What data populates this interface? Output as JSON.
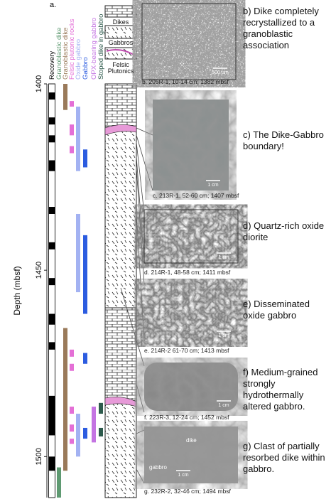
{
  "panel_a": {
    "label": "a.",
    "y_axis": {
      "title": "Depth (mbsf)",
      "lim": [
        1400,
        1511
      ],
      "ticks": [
        1400,
        1450,
        1500
      ]
    },
    "columns": [
      {
        "name": "Recovery",
        "color": "#000000",
        "intervals": [
          [
            1402.3,
            1404.2
          ],
          [
            1409,
            1410.9
          ],
          [
            1413.8,
            1415.7
          ],
          [
            1420.5,
            1423.4
          ],
          [
            1433,
            1434.9
          ],
          [
            1442.5,
            1444.4
          ],
          [
            1452.1,
            1454
          ],
          [
            1461.7,
            1464.6
          ],
          [
            1469.3,
            1471.3
          ],
          [
            1483.7,
            1494.3
          ],
          [
            1500,
            1503.8
          ]
        ]
      },
      {
        "name": "Granoblastic dike",
        "color": "#5f9a72",
        "intervals": [
          [
            1502.9,
            1511
          ]
        ]
      },
      {
        "name": "Granoblastic dike",
        "color": "#9a7a5a",
        "intervals": [
          [
            1400,
            1407
          ],
          [
            1465.5,
            1503.8
          ]
        ]
      },
      {
        "name": "Felsic plutonic rocks",
        "color": "#e46fd6",
        "intervals": [
          [
            1404.6,
            1406.1
          ],
          [
            1410.9,
            1413.8
          ],
          [
            1416.7,
            1418.6
          ],
          [
            1471.3,
            1473.2
          ],
          [
            1475.1,
            1477
          ],
          [
            1486.6,
            1488.5
          ],
          [
            1491.4,
            1493.3
          ],
          [
            1495.2,
            1496.6
          ]
        ]
      },
      {
        "name": "Oxide gabbro",
        "color": "#a3b2f2",
        "intervals": [
          [
            1406.1,
            1423.4
          ],
          [
            1434.9,
            1455.9
          ],
          [
            1488.5,
            1500
          ]
        ]
      },
      {
        "name": "Gabbro",
        "color": "#2c5ce0",
        "intervals": [
          [
            1417.6,
            1422.4
          ],
          [
            1440.6,
            1461.7
          ],
          [
            1472.2,
            1475.1
          ],
          [
            1492.3,
            1495.2
          ]
        ]
      },
      {
        "name": "OPX-bearing gabbro",
        "color": "#c474e2",
        "intervals": [
          [
            1486.6,
            1496.2
          ]
        ]
      },
      {
        "name": "Stoped dike in gabbro",
        "color": "#2d5a4c",
        "intervals": [
          [
            1485.6,
            1488.5
          ],
          [
            1492.3,
            1494.6
          ]
        ]
      }
    ],
    "legend": [
      "Dikes",
      "Gabbros",
      "Felsic Plutonics"
    ]
  },
  "photos": [
    {
      "caption": "b. 205R-1, 10-14 cm; 1382 mbsf",
      "scale": "500 µm",
      "description": "b) Dike completely recrystallized to a granoblastic association"
    },
    {
      "caption": "c. 213R-1, 52-60 cm; 1407 mbsf",
      "scale": "1 cm",
      "description": "c) The Dike-Gabbro boundary!"
    },
    {
      "caption": "d. 214R-1, 48-58 cm; 1411 mbsf",
      "scale": "1 cm",
      "description": "d) Quartz-rich oxide diorite"
    },
    {
      "caption": "e. 214R-2 61-70 cm; 1413 mbsf",
      "scale": "1 cm",
      "description": "e) Disseminated oxide gabbro"
    },
    {
      "caption": "f. 223R-3, 12-24 cm; 1452 mbsf",
      "scale": "1 cm",
      "description": "f) Medium-grained strongly hydrothermally altered gabbro."
    },
    {
      "caption": "g. 232R-2, 32-46 cm; 1494 mbsf",
      "scale": "1 cm",
      "description": "g) Clast of partially resorbed dike within gabbro.",
      "labels": [
        "gabbro",
        "dike"
      ]
    }
  ]
}
